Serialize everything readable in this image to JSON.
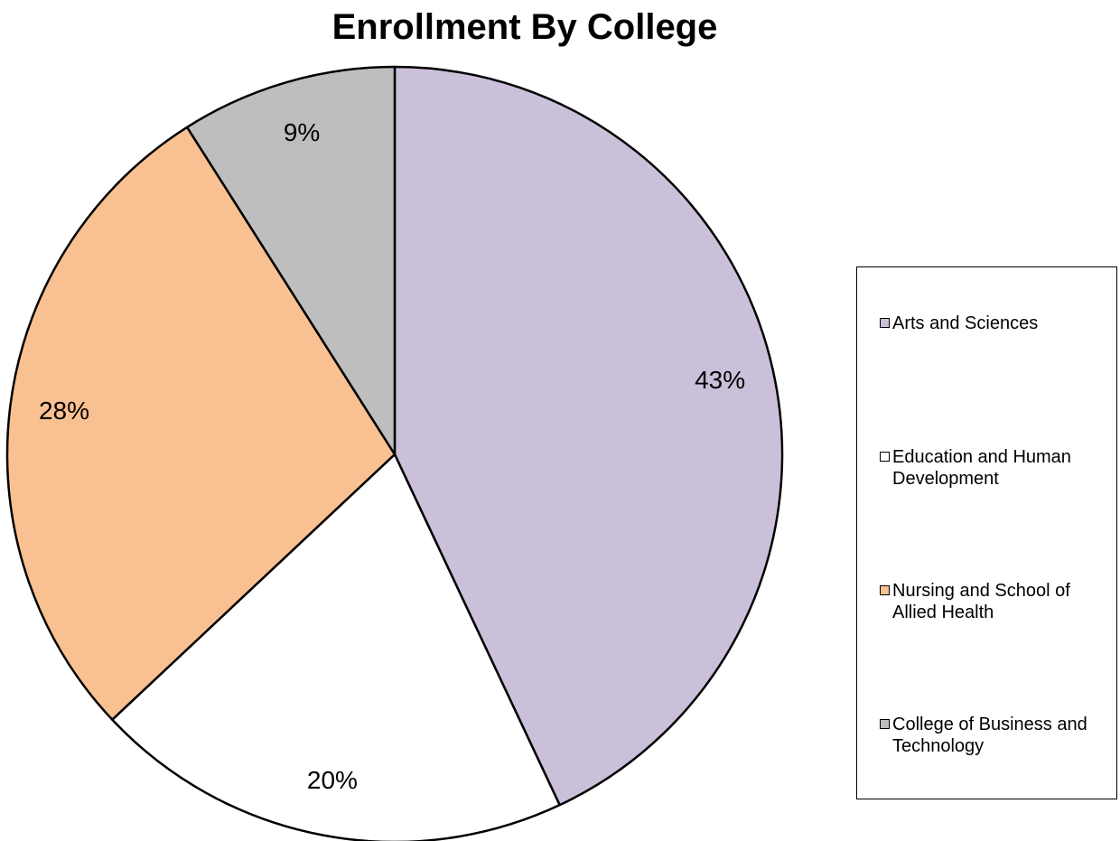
{
  "chart_data": {
    "type": "pie",
    "title": "Enrollment By College",
    "categories": [
      "Arts and Sciences",
      "Education and Human Development",
      "Nursing and School of Allied Health",
      "College of Business and Technology"
    ],
    "values": [
      43,
      20,
      28,
      9
    ],
    "data_labels": [
      "43%",
      "20%",
      "28%",
      "9%"
    ],
    "colors": [
      "#cbc0da",
      "#ffffff",
      "#f9c191",
      "#bebebe"
    ],
    "start_angle": "12 o'clock",
    "direction": "clockwise",
    "legend": {
      "position": "right",
      "entries": [
        {
          "label": "Arts and Sciences",
          "color": "#cbc0da"
        },
        {
          "label": "Education and Human Development",
          "color": "#ffffff"
        },
        {
          "label": "Nursing and School of Allied Health",
          "color": "#f9c191"
        },
        {
          "label": "College of Business and Technology",
          "color": "#bebebe"
        }
      ]
    }
  }
}
